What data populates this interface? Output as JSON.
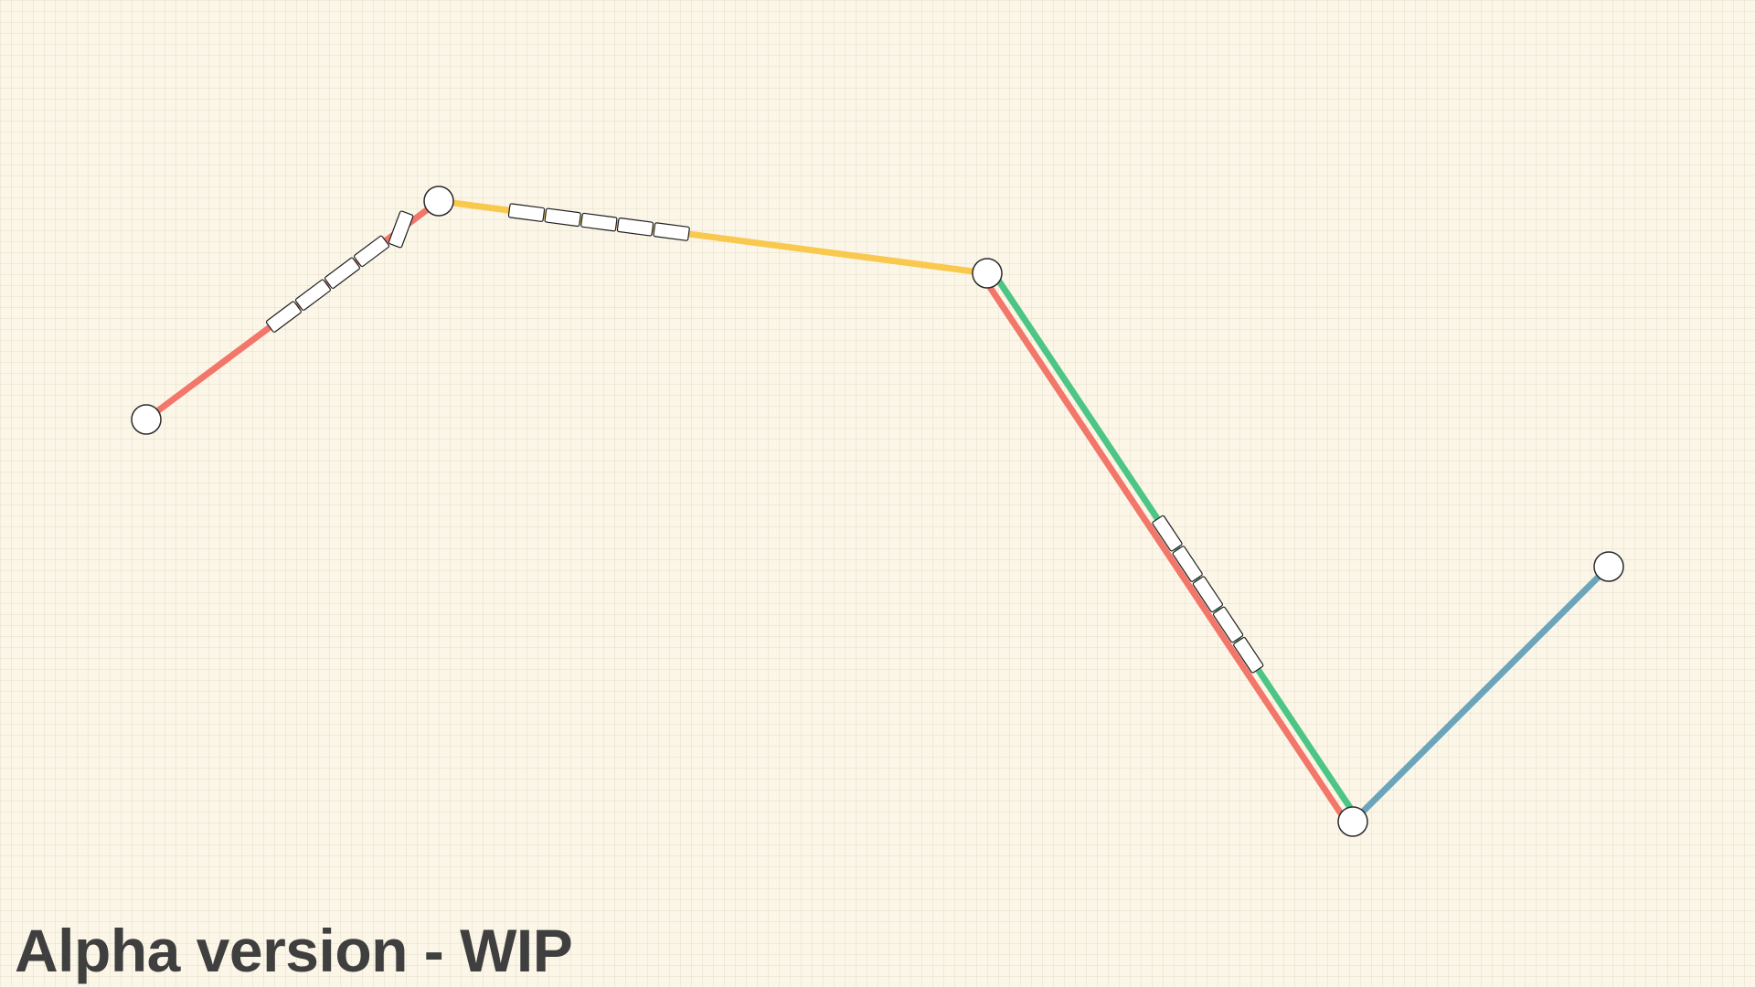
{
  "watermark": {
    "text": "Alpha version - WIP"
  },
  "lines": [
    {
      "name": "red-line",
      "color": "#f2766a",
      "stations": [
        "station-1",
        "station-2",
        "station-3",
        "station-4"
      ]
    },
    {
      "name": "yellow-line",
      "color": "#f9c94f",
      "stations": [
        "station-2",
        "station-3"
      ]
    },
    {
      "name": "green-line",
      "color": "#4cc585",
      "stations": [
        "station-3",
        "station-4"
      ]
    },
    {
      "name": "blue-line",
      "color": "#6ba5bb",
      "stations": [
        "station-4",
        "station-5"
      ]
    }
  ],
  "stations": [
    "station-1",
    "station-2",
    "station-3",
    "station-4",
    "station-5"
  ],
  "trains": [
    {
      "name": "train-red-line",
      "line": "red-line",
      "cars": 5
    },
    {
      "name": "train-yellow-line",
      "line": "yellow-line",
      "cars": 5
    },
    {
      "name": "train-green-line",
      "line": "green-line",
      "cars": 5
    }
  ]
}
